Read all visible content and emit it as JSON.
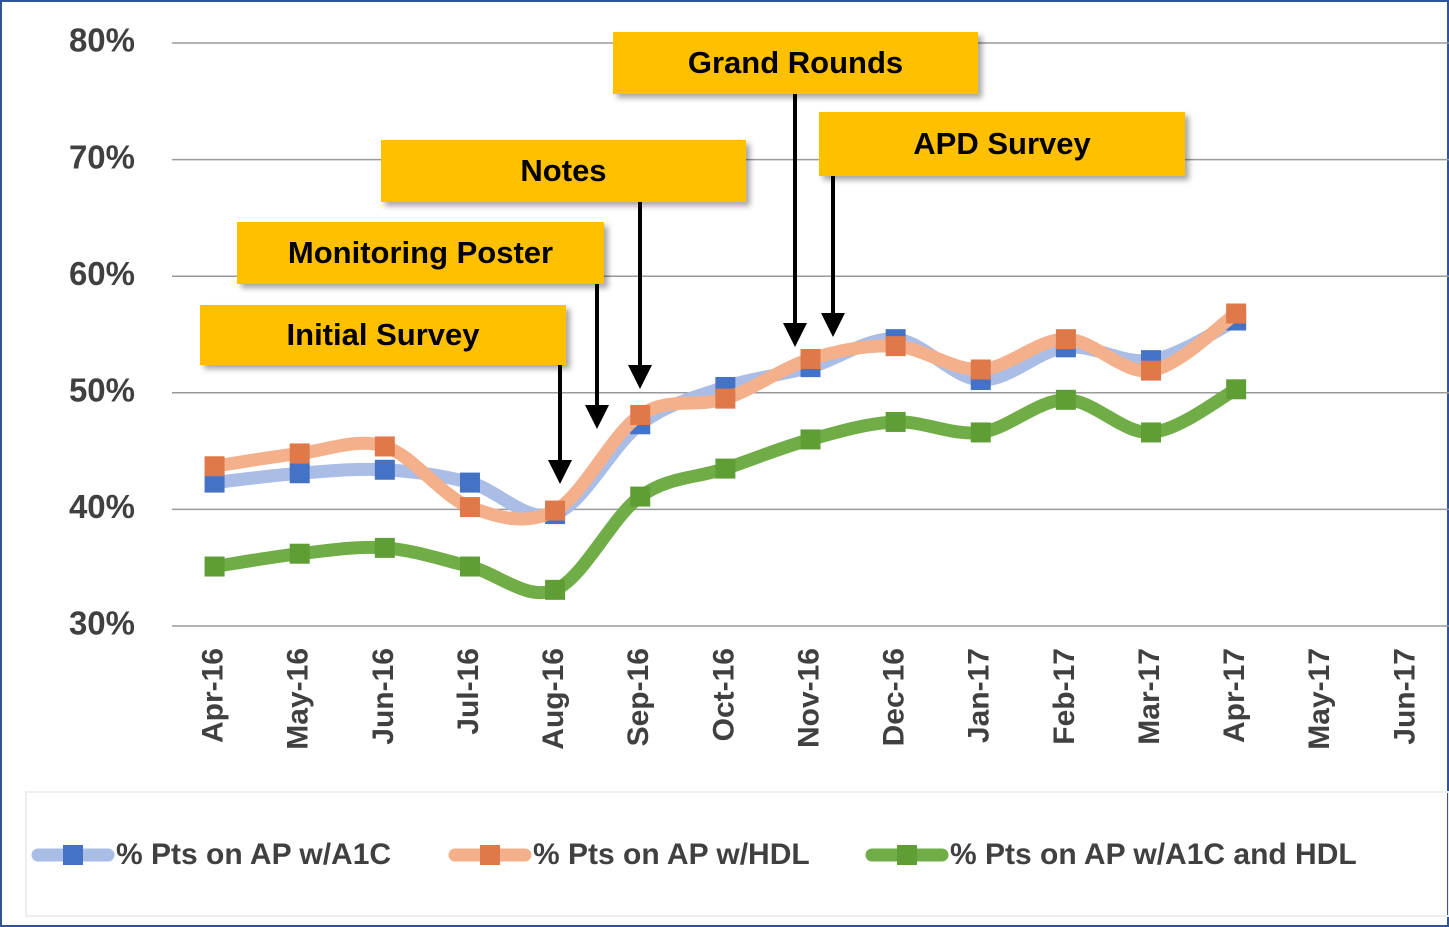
{
  "chart_data": {
    "type": "line",
    "categories": [
      "Apr-16",
      "May-16",
      "Jun-16",
      "Jul-16",
      "Aug-16",
      "Sep-16",
      "Oct-16",
      "Nov-16",
      "Dec-16",
      "Jan-17",
      "Feb-17",
      "Mar-17",
      "Apr-17",
      "May-17",
      "Jun-17"
    ],
    "series": [
      {
        "name": "% Pts on AP w/A1C",
        "color": "#4472c4",
        "values": [
          42.3,
          43.1,
          43.4,
          42.3,
          39.6,
          47.3,
          50.5,
          52.2,
          54.6,
          51.1,
          53.9,
          52.8,
          56.2,
          null,
          null
        ]
      },
      {
        "name": "% Pts on AP w/HDL",
        "color": "#e0794a",
        "values": [
          43.7,
          44.8,
          45.4,
          40.2,
          39.9,
          48.1,
          49.5,
          52.9,
          54.0,
          52.0,
          54.6,
          51.9,
          56.8,
          null,
          null
        ]
      },
      {
        "name": "% Pts on AP w/A1C and HDL",
        "color": "#5f9e35",
        "values": [
          35.1,
          36.2,
          36.7,
          35.1,
          33.1,
          41.1,
          43.5,
          46.0,
          47.5,
          46.6,
          49.4,
          46.6,
          50.3,
          null,
          null
        ]
      }
    ],
    "ylim": [
      30,
      80
    ],
    "yticks": [
      {
        "value": 30,
        "label": "30%"
      },
      {
        "value": 40,
        "label": "40%"
      },
      {
        "value": 50,
        "label": "50%"
      },
      {
        "value": 60,
        "label": "60%"
      },
      {
        "value": 70,
        "label": "70%"
      },
      {
        "value": 80,
        "label": "80%"
      }
    ],
    "grid": true,
    "legend": "bottom",
    "annotations": [
      {
        "text": "Initial Survey"
      },
      {
        "text": "Monitoring Poster"
      },
      {
        "text": "Notes"
      },
      {
        "text": "Grand Rounds"
      },
      {
        "text": "APD Survey"
      }
    ]
  }
}
